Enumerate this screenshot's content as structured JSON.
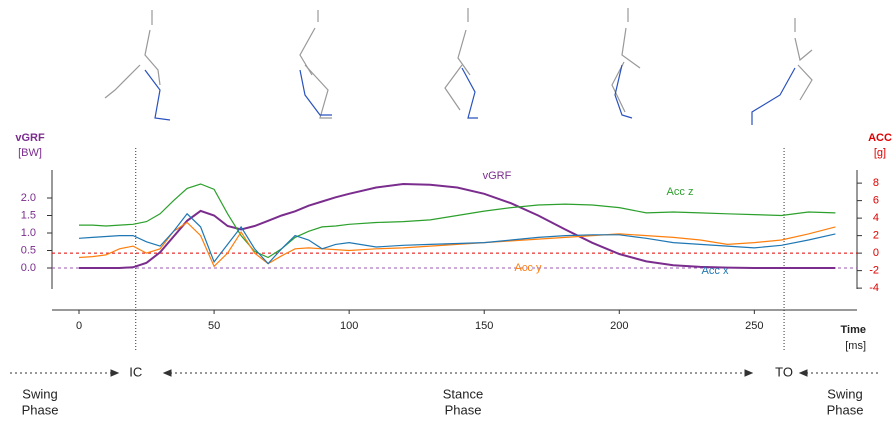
{
  "chart_data": {
    "type": "line",
    "y_label": "vGRF",
    "y_unit": "[BW]",
    "y2_label": "ACC",
    "y2_unit": "[g]",
    "x_label": "Time",
    "x_unit": "[ms]",
    "x": [
      0,
      5,
      10,
      15,
      20,
      25,
      30,
      35,
      40,
      45,
      50,
      55,
      60,
      65,
      70,
      75,
      80,
      85,
      90,
      95,
      100,
      110,
      120,
      130,
      140,
      150,
      160,
      170,
      180,
      190,
      200,
      210,
      220,
      230,
      240,
      250,
      260,
      270,
      280
    ],
    "series": [
      {
        "name": "vGRF",
        "color": "#7b2d8e",
        "axis": "y",
        "values": [
          0,
          0,
          0,
          0,
          0.02,
          0.15,
          0.45,
          0.9,
          1.35,
          1.63,
          1.5,
          1.2,
          1.1,
          1.2,
          1.35,
          1.5,
          1.62,
          1.78,
          1.9,
          2.02,
          2.12,
          2.3,
          2.4,
          2.38,
          2.3,
          2.12,
          1.85,
          1.5,
          1.1,
          0.72,
          0.4,
          0.19,
          0.08,
          0.03,
          0.01,
          0,
          0,
          0,
          0
        ]
      },
      {
        "name": "Acc z",
        "color": "#2ca02c",
        "axis": "y2",
        "values": [
          3.2,
          3.2,
          3.1,
          3.2,
          3.3,
          3.6,
          4.5,
          6.0,
          7.4,
          7.9,
          7.3,
          4.5,
          2.0,
          0.2,
          -0.5,
          0.5,
          1.8,
          2.5,
          3.0,
          3.1,
          3.3,
          3.5,
          3.6,
          3.8,
          4.3,
          4.8,
          5.2,
          5.5,
          5.6,
          5.5,
          5.2,
          4.6,
          4.7,
          4.6,
          4.5,
          4.4,
          4.3,
          4.7,
          4.6
        ]
      },
      {
        "name": "Acc y",
        "color": "#ff7f0e",
        "axis": "y2",
        "values": [
          -0.5,
          -0.4,
          -0.2,
          0.5,
          0.8,
          0.0,
          0.5,
          2.5,
          3.5,
          2.0,
          -1.5,
          0.0,
          2.4,
          0.0,
          -1.2,
          -0.3,
          0.5,
          0.6,
          0.5,
          0.4,
          0.3,
          0.5,
          0.6,
          0.8,
          1.0,
          1.2,
          1.4,
          1.6,
          1.8,
          2.0,
          2.2,
          2.0,
          1.8,
          1.5,
          1.0,
          1.2,
          1.5,
          2.2,
          3.0
        ]
      },
      {
        "name": "Acc x",
        "color": "#1f77b4",
        "axis": "y2",
        "values": [
          1.7,
          1.8,
          1.9,
          2.0,
          2.0,
          1.3,
          0.8,
          2.5,
          4.5,
          3.0,
          -1.0,
          1.0,
          3.0,
          0.5,
          -1.2,
          0.5,
          2.0,
          1.5,
          0.5,
          1.0,
          1.2,
          0.7,
          0.9,
          1.0,
          1.1,
          1.2,
          1.5,
          1.8,
          2.0,
          2.1,
          2.1,
          1.7,
          1.2,
          1.0,
          0.8,
          0.6,
          0.9,
          1.5,
          2.2
        ]
      }
    ],
    "xlim": [
      -10,
      288
    ],
    "xticks": [
      0,
      50,
      100,
      150,
      200,
      250
    ],
    "ylim": [
      -0.6,
      2.8
    ],
    "yticks": [
      {
        "value": 0,
        "label": "0.0"
      },
      0.5,
      {
        "value": 1,
        "label": "1.0"
      },
      1.5,
      {
        "value": 2,
        "label": "2.0"
      }
    ],
    "y2lim": [
      -4.1,
      9.5
    ],
    "y2ticks": [
      -4,
      -2,
      0,
      2,
      4,
      6,
      8
    ],
    "reference_lines": [
      {
        "axis": "y2",
        "value": 0,
        "color": "#e00000"
      },
      {
        "axis": "y",
        "value": 0,
        "color": "#9b59b6"
      }
    ],
    "events": [
      {
        "label": "IC",
        "x": 21
      },
      {
        "label": "TO",
        "x": 261
      }
    ],
    "phases": [
      {
        "lines": [
          "Swing",
          "Phase"
        ]
      },
      {
        "lines": [
          "Stance",
          "Phase"
        ]
      },
      {
        "lines": [
          "Swing",
          "Phase"
        ]
      }
    ]
  }
}
